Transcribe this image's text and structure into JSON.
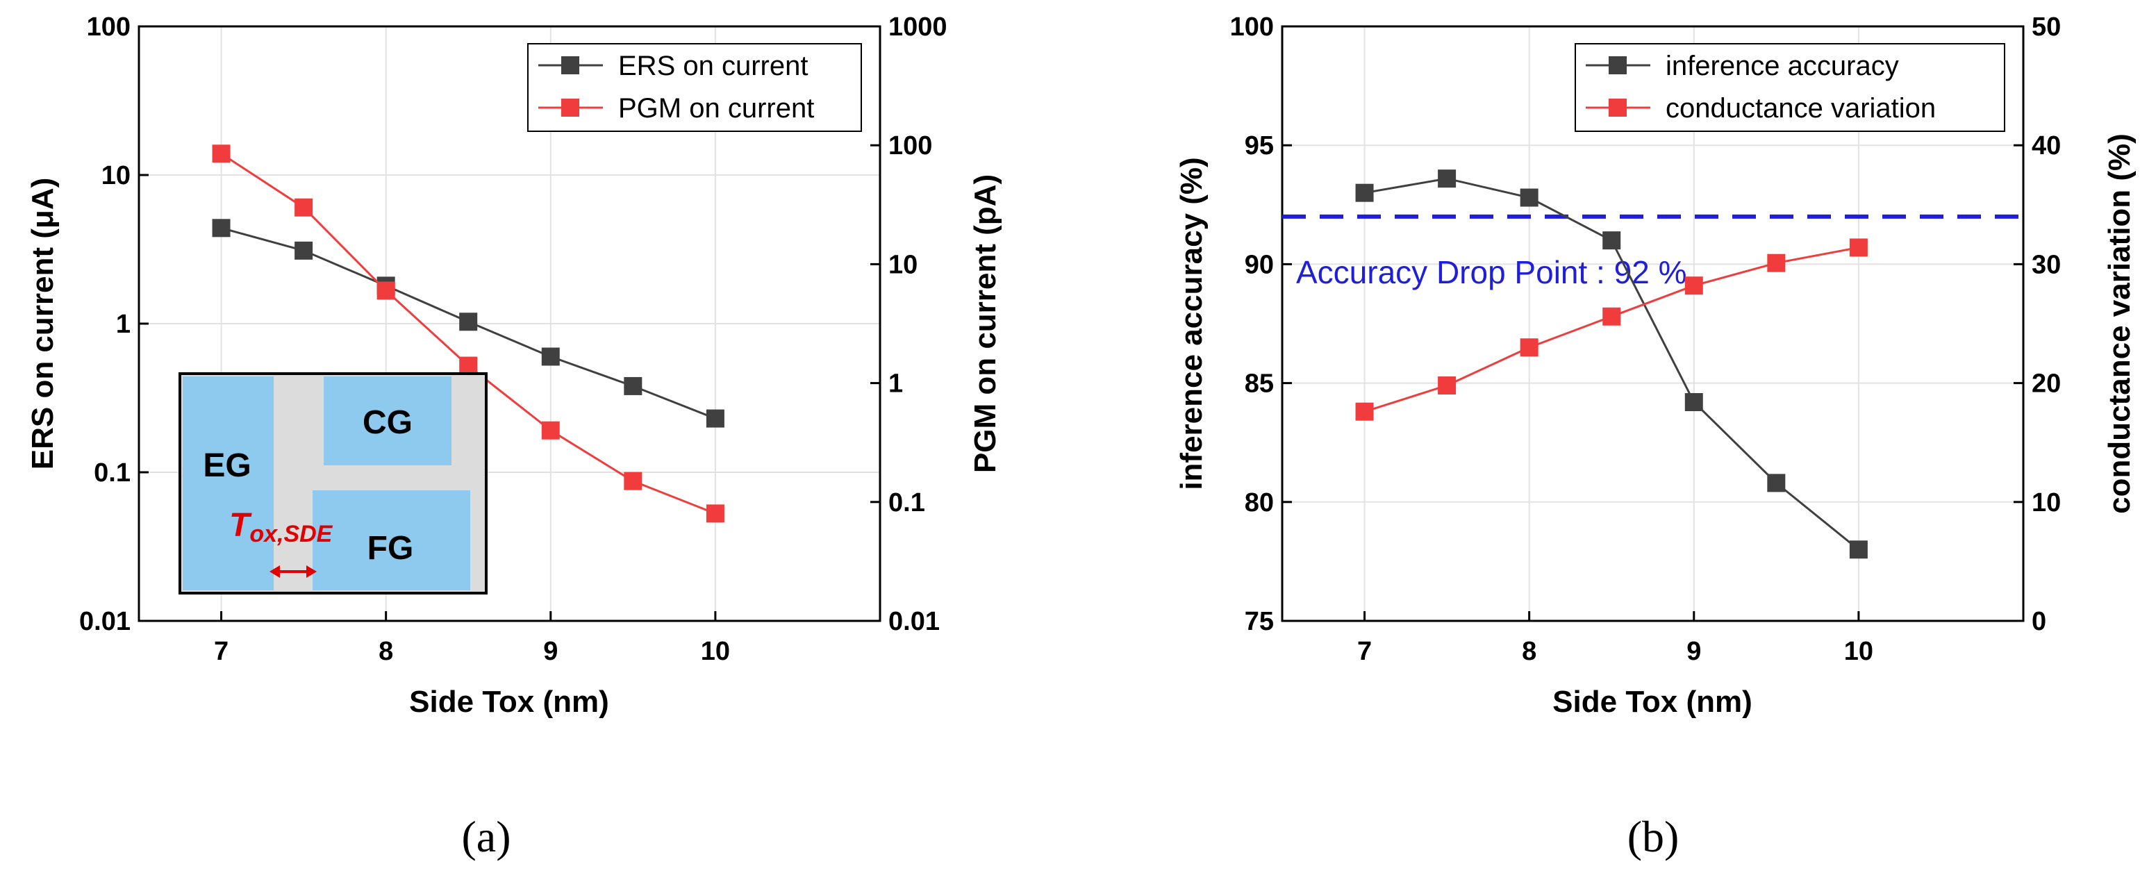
{
  "chart_data": [
    {
      "panel": "(a)",
      "type": "line",
      "xlabel": "Side Tox (nm)",
      "ylabel_left": "ERS on current (μA)",
      "ylabel_right": "PGM on current (pA)",
      "xlim": [
        6.5,
        11
      ],
      "x_ticks": [
        7,
        8,
        9,
        10
      ],
      "x_tick_labels": [
        "7",
        "8",
        "9",
        "10"
      ],
      "yscale": "log",
      "ylim_left": [
        0.01,
        100
      ],
      "y_ticks_left": [
        0.01,
        0.1,
        1,
        10,
        100
      ],
      "y_tick_labels_left": [
        "0.01",
        "0.1",
        "1",
        "10",
        "100"
      ],
      "ylim_right": [
        0.01,
        1000
      ],
      "y_ticks_right": [
        0.01,
        0.1,
        1,
        10,
        100,
        1000
      ],
      "y_tick_labels_right": [
        "0.01",
        "0.1",
        "1",
        "10",
        "100",
        "1000"
      ],
      "legend_position": "top-right",
      "series": [
        {
          "name": "ERS on current",
          "axis": "left",
          "color": "#404040",
          "x": [
            7,
            7.5,
            8,
            8.5,
            9,
            9.5,
            10
          ],
          "values": [
            4.4,
            3.1,
            1.8,
            1.03,
            0.6,
            0.38,
            0.23
          ]
        },
        {
          "name": "PGM on current",
          "axis": "right",
          "color": "#f03c3c",
          "x": [
            7,
            7.5,
            8,
            8.5,
            9,
            9.5,
            10
          ],
          "values": [
            85,
            30,
            6,
            1.4,
            0.4,
            0.15,
            0.08
          ]
        }
      ],
      "inset": {
        "labels": {
          "eg": "EG",
          "cg": "CG",
          "fg": "FG"
        },
        "dimension_label": {
          "main": "T",
          "sub": "ox,SDE"
        },
        "colors": {
          "region": "#8ec9ee",
          "oxide": "#dcdcdc",
          "arrow": "#e00000"
        }
      }
    },
    {
      "panel": "(b)",
      "type": "line",
      "xlabel": "Side Tox (nm)",
      "ylabel_left": "inference accuracy (%)",
      "ylabel_right": "conductance variation (%)",
      "xlim": [
        6.5,
        11
      ],
      "x_ticks": [
        7,
        8,
        9,
        10
      ],
      "x_tick_labels": [
        "7",
        "8",
        "9",
        "10"
      ],
      "ylim_left": [
        75,
        100
      ],
      "y_ticks_left": [
        75,
        80,
        85,
        90,
        95,
        100
      ],
      "y_tick_labels_left": [
        "75",
        "80",
        "85",
        "90",
        "95",
        "100"
      ],
      "ylim_right": [
        0,
        50
      ],
      "y_ticks_right": [
        0,
        10,
        20,
        30,
        40,
        50
      ],
      "y_tick_labels_right": [
        "0",
        "10",
        "20",
        "30",
        "40",
        "50"
      ],
      "legend_position": "top-right",
      "series": [
        {
          "name": "inference accuracy",
          "axis": "left",
          "color": "#404040",
          "x": [
            7,
            7.5,
            8,
            8.5,
            9,
            9.5,
            10
          ],
          "values": [
            93.0,
            93.6,
            92.8,
            91.0,
            84.2,
            80.8,
            78.0
          ]
        },
        {
          "name": "conductance variation",
          "axis": "right",
          "color": "#f03c3c",
          "x": [
            7,
            7.5,
            8,
            8.5,
            9,
            9.5,
            10
          ],
          "values": [
            17.6,
            19.8,
            23.0,
            25.6,
            28.2,
            30.1,
            31.4
          ]
        }
      ],
      "reference_line": {
        "value": 92,
        "axis": "left",
        "color": "#1f1fd9",
        "label": "Accuracy Drop Point : 92 %"
      }
    }
  ]
}
